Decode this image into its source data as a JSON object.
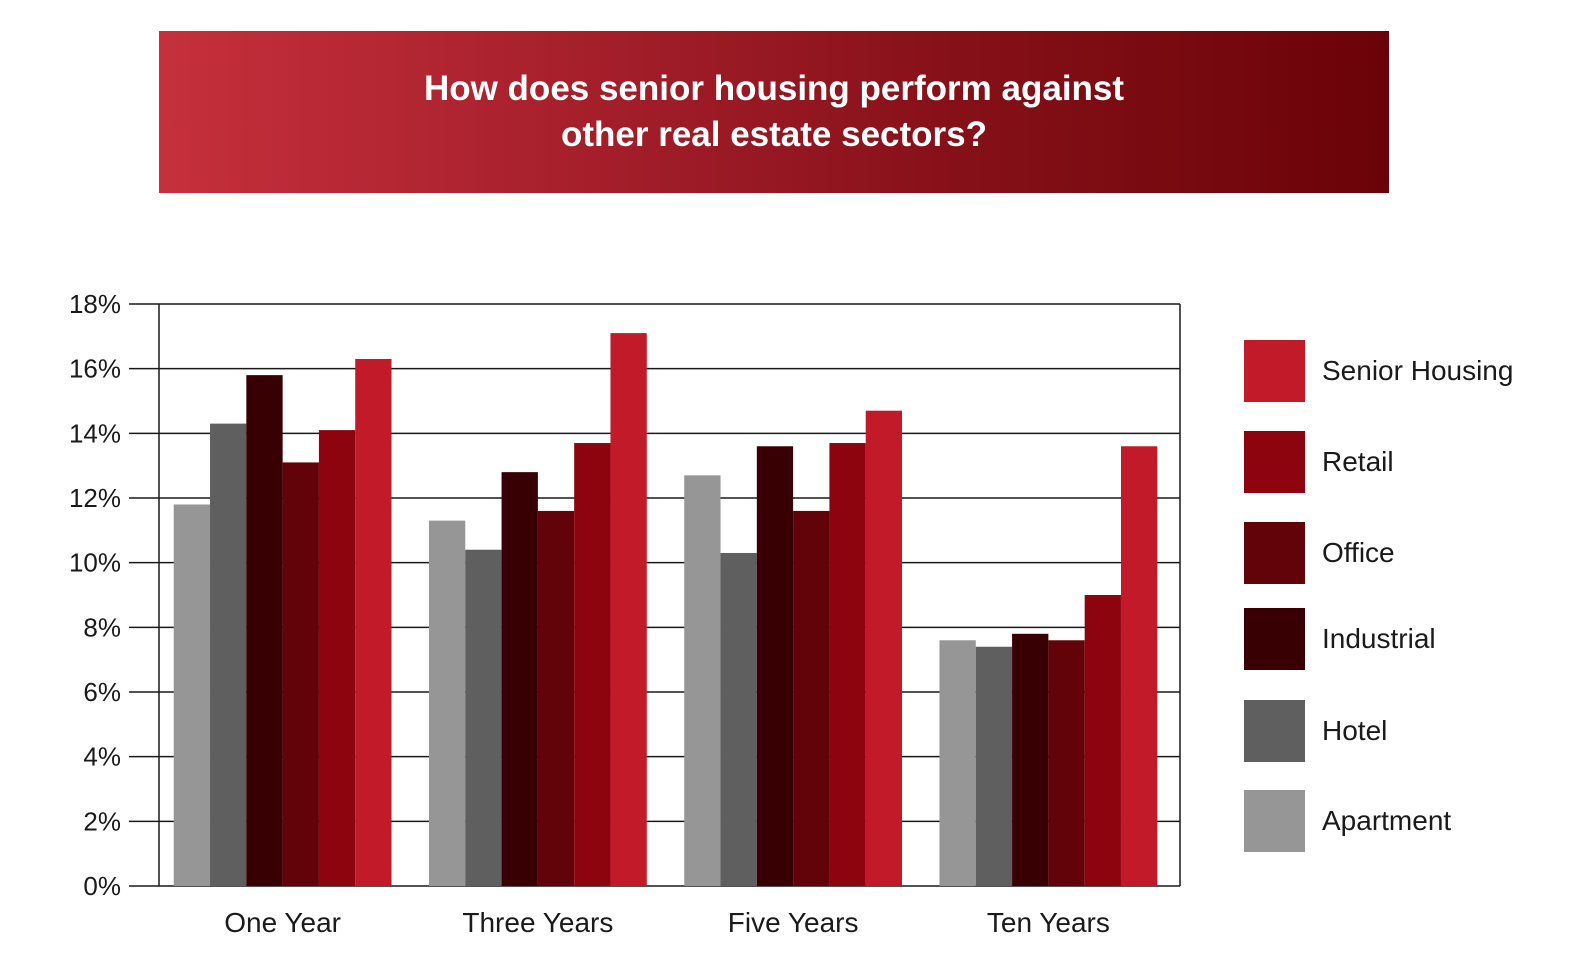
{
  "banner": {
    "line1": "How does senior housing perform against",
    "line2": "other real estate sectors?"
  },
  "chart_data": {
    "type": "bar",
    "title": "How does senior housing perform against other real estate sectors?",
    "categories": [
      "One Year",
      "Three Years",
      "Five Years",
      "Ten Years"
    ],
    "ylim": [
      0,
      18
    ],
    "yticks": [
      "0%",
      "2%",
      "4%",
      "6%",
      "8%",
      "10%",
      "12%",
      "14%",
      "16%",
      "18%"
    ],
    "grid": true,
    "legend_position": "right",
    "series": [
      {
        "name": "Apartment",
        "color": "#969696",
        "values": [
          11.8,
          11.3,
          12.7,
          7.6
        ]
      },
      {
        "name": "Hotel",
        "color": "#5f5f5f",
        "values": [
          14.3,
          10.4,
          10.3,
          7.4
        ]
      },
      {
        "name": "Industrial",
        "color": "#380003",
        "values": [
          15.8,
          12.8,
          13.6,
          7.8
        ]
      },
      {
        "name": "Office",
        "color": "#610308",
        "values": [
          13.1,
          11.6,
          11.6,
          7.6
        ]
      },
      {
        "name": "Retail",
        "color": "#8e040e",
        "values": [
          14.1,
          13.7,
          13.7,
          9.0
        ]
      },
      {
        "name": "Senior Housing",
        "color": "#c21a28",
        "values": [
          16.3,
          17.1,
          14.7,
          13.6
        ]
      }
    ]
  },
  "legend": {
    "items": [
      {
        "label": "Senior Housing",
        "color": "#c21a28"
      },
      {
        "label": "Retail",
        "color": "#8e040e"
      },
      {
        "label": "Office",
        "color": "#610308"
      },
      {
        "label": "Industrial",
        "color": "#380003"
      },
      {
        "label": "Hotel",
        "color": "#5f5f5f"
      },
      {
        "label": "Apartment",
        "color": "#969696"
      }
    ]
  }
}
